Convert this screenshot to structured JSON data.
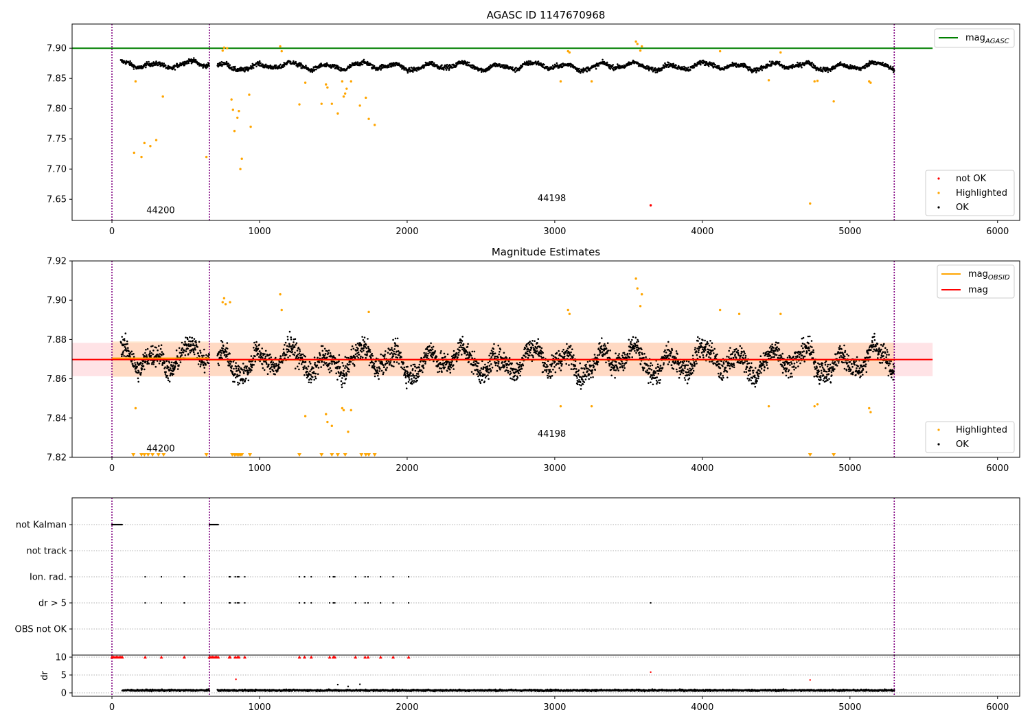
{
  "chart_data": [
    {
      "type": "scatter",
      "title": "AGASC ID 1147670968",
      "xlim": [
        -270,
        6150
      ],
      "ylim": [
        7.615,
        7.94
      ],
      "xticks": [
        0,
        1000,
        2000,
        3000,
        4000,
        5000,
        6000
      ],
      "yticks": [
        7.65,
        7.7,
        7.75,
        7.8,
        7.85,
        7.9
      ],
      "ytick_labels": [
        "7.65",
        "7.70",
        "7.75",
        "7.80",
        "7.85",
        "7.90"
      ],
      "vlines": [
        0,
        660,
        5300
      ],
      "hline": {
        "name": "mag_AGASC",
        "label_main": "mag",
        "label_sub": "AGASC",
        "y": 7.9,
        "x_range": [
          -270,
          5560
        ],
        "color": "#008000"
      },
      "obsid_labels": [
        {
          "text": "44200",
          "x": 330,
          "y": 7.627
        },
        {
          "text": "44198",
          "x": 2980,
          "y": 7.647
        }
      ],
      "ok_segments": [
        {
          "x0": 60,
          "x1": 660,
          "mean": 7.873,
          "amp": 0.008,
          "noise": 0.004
        },
        {
          "x0": 715,
          "x1": 5300,
          "mean": 7.87,
          "amp": 0.008,
          "noise": 0.004
        }
      ],
      "highlighted": [
        [
          150,
          7.727
        ],
        [
          160,
          7.845
        ],
        [
          200,
          7.72
        ],
        [
          220,
          7.743
        ],
        [
          260,
          7.738
        ],
        [
          300,
          7.748
        ],
        [
          345,
          7.82
        ],
        [
          640,
          7.72
        ],
        [
          750,
          7.896
        ],
        [
          760,
          7.901
        ],
        [
          780,
          7.9
        ],
        [
          810,
          7.815
        ],
        [
          820,
          7.798
        ],
        [
          830,
          7.763
        ],
        [
          850,
          7.785
        ],
        [
          860,
          7.796
        ],
        [
          870,
          7.7
        ],
        [
          880,
          7.717
        ],
        [
          930,
          7.823
        ],
        [
          940,
          7.77
        ],
        [
          1140,
          7.903
        ],
        [
          1150,
          7.895
        ],
        [
          1270,
          7.807
        ],
        [
          1310,
          7.843
        ],
        [
          1420,
          7.808
        ],
        [
          1450,
          7.84
        ],
        [
          1460,
          7.835
        ],
        [
          1490,
          7.808
        ],
        [
          1530,
          7.792
        ],
        [
          1560,
          7.845
        ],
        [
          1570,
          7.82
        ],
        [
          1580,
          7.825
        ],
        [
          1590,
          7.833
        ],
        [
          1620,
          7.845
        ],
        [
          1680,
          7.805
        ],
        [
          1720,
          7.818
        ],
        [
          1740,
          7.783
        ],
        [
          1780,
          7.773
        ],
        [
          3040,
          7.845
        ],
        [
          3090,
          7.895
        ],
        [
          3100,
          7.893
        ],
        [
          3250,
          7.845
        ],
        [
          3550,
          7.911
        ],
        [
          3560,
          7.907
        ],
        [
          3580,
          7.896
        ],
        [
          3590,
          7.903
        ],
        [
          4120,
          7.895
        ],
        [
          4450,
          7.847
        ],
        [
          4530,
          7.893
        ],
        [
          4730,
          7.643
        ],
        [
          4760,
          7.845
        ],
        [
          4780,
          7.846
        ],
        [
          4890,
          7.812
        ],
        [
          5130,
          7.845
        ],
        [
          5140,
          7.843
        ]
      ],
      "not_ok": [
        [
          3650,
          7.64
        ]
      ],
      "legend": [
        "not OK",
        "Highlighted",
        "OK"
      ],
      "colors": {
        "ok": "#000000",
        "highlighted": "#ffa500",
        "not_ok": "#ff0000",
        "vline": "#800080"
      }
    },
    {
      "type": "scatter",
      "title": "Magnitude Estimates",
      "xlim": [
        -270,
        6150
      ],
      "ylim": [
        7.82,
        7.92
      ],
      "xticks": [
        0,
        1000,
        2000,
        3000,
        4000,
        5000,
        6000
      ],
      "yticks": [
        7.82,
        7.84,
        7.86,
        7.88,
        7.9,
        7.92
      ],
      "ytick_labels": [
        "7.82",
        "7.84",
        "7.86",
        "7.88",
        "7.90",
        "7.92"
      ],
      "vlines": [
        0,
        660,
        5300
      ],
      "mag_line": {
        "name": "mag",
        "y": 7.8698,
        "x_range": [
          -270,
          5560
        ],
        "band": [
          7.8613,
          7.8783
        ],
        "color": "#ff0000"
      },
      "obsid_mag_lines": [
        {
          "x_range": [
            0,
            660
          ],
          "y": 7.8705,
          "band": [
            7.861,
            7.879
          ]
        },
        {
          "x_range": [
            660,
            5300
          ],
          "y": 7.8696,
          "band": [
            7.8614,
            7.8784
          ]
        }
      ],
      "obsid_labels": [
        {
          "text": "44200",
          "x": 330,
          "y": 7.823
        },
        {
          "text": "44198",
          "x": 2980,
          "y": 7.8305
        }
      ],
      "ok_segments": [
        {
          "x0": 60,
          "x1": 660,
          "mean": 7.871,
          "amp": 0.009,
          "noise": 0.006
        },
        {
          "x0": 715,
          "x1": 5300,
          "mean": 7.869,
          "amp": 0.009,
          "noise": 0.006
        }
      ],
      "highlighted": [
        [
          160,
          7.845
        ],
        [
          750,
          7.899
        ],
        [
          760,
          7.901
        ],
        [
          770,
          7.898
        ],
        [
          800,
          7.899
        ],
        [
          1140,
          7.903
        ],
        [
          1150,
          7.895
        ],
        [
          1310,
          7.841
        ],
        [
          1450,
          7.842
        ],
        [
          1460,
          7.838
        ],
        [
          1490,
          7.836
        ],
        [
          1560,
          7.845
        ],
        [
          1570,
          7.844
        ],
        [
          1600,
          7.833
        ],
        [
          1620,
          7.844
        ],
        [
          1740,
          7.894
        ],
        [
          3040,
          7.846
        ],
        [
          3090,
          7.895
        ],
        [
          3100,
          7.893
        ],
        [
          3250,
          7.846
        ],
        [
          3550,
          7.911
        ],
        [
          3560,
          7.906
        ],
        [
          3580,
          7.897
        ],
        [
          3590,
          7.903
        ],
        [
          4120,
          7.895
        ],
        [
          4250,
          7.893
        ],
        [
          4450,
          7.846
        ],
        [
          4530,
          7.893
        ],
        [
          4760,
          7.846
        ],
        [
          4780,
          7.847
        ],
        [
          5130,
          7.845
        ],
        [
          5140,
          7.843
        ]
      ],
      "clipped_x": [
        145,
        200,
        220,
        245,
        275,
        315,
        350,
        640,
        815,
        830,
        840,
        850,
        860,
        870,
        880,
        935,
        1270,
        1420,
        1490,
        1530,
        1580,
        1690,
        1720,
        1740,
        1780,
        4730,
        4890
      ],
      "legend": [
        "Highlighted",
        "OK"
      ],
      "legend_lines": [
        {
          "label_main": "mag",
          "label_sub": "OBSID",
          "color": "#ffa500"
        },
        {
          "label_main": "mag",
          "label_sub": "",
          "color": "#ff0000"
        }
      ],
      "colors": {
        "ok": "#000000",
        "highlighted": "#ffa500",
        "band_total": "#ffc0c8",
        "band_obsid": "#ffcc99",
        "vline": "#800080"
      }
    },
    {
      "type": "scatter",
      "title": "",
      "xlim": [
        -270,
        6150
      ],
      "flag_rows": [
        "not Kalman",
        "not track",
        "Ion. rad.",
        "dr > 5",
        "OBS not OK"
      ],
      "vlines": [
        0,
        660,
        5300
      ],
      "flags": {
        "not Kalman": {
          "ranges": [
            [
              0,
              70
            ],
            [
              660,
              720
            ]
          ]
        },
        "not track": {
          "ranges": []
        },
        "Ion. rad.": {
          "points": [
            225,
            335,
            490,
            795,
            800,
            835,
            850,
            860,
            900,
            1270,
            1305,
            1350,
            1475,
            1500,
            1510,
            1650,
            1715,
            1735,
            1820,
            1905,
            2010
          ]
        },
        "dr > 5": {
          "points": [
            225,
            335,
            490,
            795,
            800,
            835,
            850,
            860,
            900,
            1270,
            1305,
            1350,
            1475,
            1500,
            1510,
            1650,
            1715,
            1735,
            1820,
            1905,
            2010,
            3650
          ]
        },
        "OBS not OK": {
          "ranges": []
        }
      },
      "colors": {
        "flag": "#000000",
        "grid": "#b0b0b0",
        "vline": "#800080"
      }
    },
    {
      "type": "scatter",
      "title": "",
      "ylabel": "dr",
      "xlim": [
        -270,
        6150
      ],
      "ylim": [
        -0.5,
        10.5
      ],
      "xticks": [
        0,
        1000,
        2000,
        3000,
        4000,
        5000,
        6000
      ],
      "yticks": [
        0,
        5,
        10
      ],
      "ytick_labels": [
        "0",
        "5",
        "10"
      ],
      "vlines": [
        0,
        660,
        5300
      ],
      "ok_segments": [
        {
          "x0": 70,
          "x1": 660,
          "mean": 0.7,
          "noise": 0.25
        },
        {
          "x0": 715,
          "x1": 5300,
          "mean": 0.7,
          "noise": 0.25
        }
      ],
      "clipped_x": [
        0,
        10,
        20,
        30,
        40,
        50,
        60,
        70,
        225,
        335,
        490,
        660,
        670,
        680,
        690,
        700,
        710,
        720,
        795,
        800,
        835,
        850,
        860,
        900,
        1270,
        1305,
        1350,
        1475,
        1500,
        1510,
        1650,
        1715,
        1735,
        1820,
        1905,
        2010
      ],
      "outliers": [
        [
          840,
          3.8
        ],
        [
          3650,
          5.8
        ],
        [
          4730,
          3.6
        ],
        [
          1530,
          2.3
        ],
        [
          1680,
          2.4
        ],
        [
          1600,
          1.8
        ]
      ],
      "colors": {
        "ok": "#000000",
        "clipped": "#ff0000",
        "grid": "#b0b0b0",
        "vline": "#800080"
      }
    }
  ]
}
